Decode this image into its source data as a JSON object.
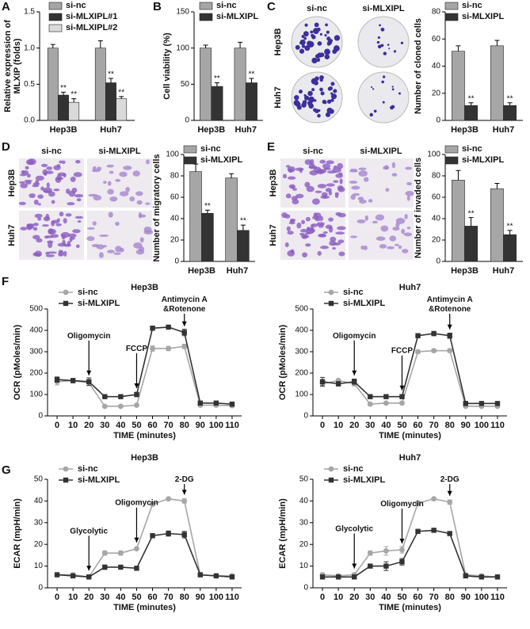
{
  "chart_data": [
    {
      "type": "bar",
      "panel": "A",
      "categories": [
        "Hep3B",
        "Huh7"
      ],
      "ylabel": [
        "Relative expression of",
        "MLXIP (folds)"
      ],
      "ylim": [
        0,
        1.5
      ],
      "yticks": [
        {
          "value": 0,
          "label": "0.0"
        },
        {
          "value": 0.5,
          "label": "0.5"
        },
        {
          "value": 1,
          "label": "1.0"
        },
        {
          "value": 1.5,
          "label": "1.5"
        }
      ],
      "series": [
        {
          "name": "si-nc",
          "color": "#a6a6a6",
          "values": [
            1.0,
            1.0
          ],
          "errors": [
            0.05,
            0.1
          ]
        },
        {
          "name": "si-MLXIPL#1",
          "color": "#333333",
          "values": [
            0.35,
            0.52
          ],
          "errors": [
            0.04,
            0.06
          ],
          "annotations": [
            "**",
            "**"
          ]
        },
        {
          "name": "si-MLXIPL#2",
          "color": "#dadada",
          "values": [
            0.25,
            0.3
          ],
          "errors": [
            0.05,
            0.03
          ],
          "annotations": [
            "**",
            "**"
          ]
        }
      ]
    },
    {
      "type": "bar",
      "panel": "B",
      "categories": [
        "Hep3B",
        "Huh7"
      ],
      "ylabel": "Cell viability (%)",
      "ylim": [
        0,
        150
      ],
      "yticks": [
        0,
        50,
        100,
        150
      ],
      "series": [
        {
          "name": "si-nc",
          "color": "#a6a6a6",
          "values": [
            100,
            100
          ],
          "errors": [
            4,
            8
          ]
        },
        {
          "name": "si-MLXIPL",
          "color": "#333333",
          "values": [
            47,
            52
          ],
          "errors": [
            5,
            6
          ],
          "annotations": [
            "**",
            "**"
          ]
        }
      ]
    },
    {
      "type": "bar",
      "panel": "C",
      "categories": [
        "Hep3B",
        "Huh7"
      ],
      "ylabel": "Number of cloned cells",
      "ylim": [
        0,
        80
      ],
      "yticks": [
        0,
        20,
        40,
        60,
        80
      ],
      "series": [
        {
          "name": "si-nc",
          "color": "#a6a6a6",
          "values": [
            51,
            55
          ],
          "errors": [
            4,
            4
          ]
        },
        {
          "name": "si-MLXIPL",
          "color": "#333333",
          "values": [
            11,
            11
          ],
          "errors": [
            2,
            2
          ],
          "annotations": [
            "**",
            "**"
          ]
        }
      ]
    },
    {
      "type": "bar",
      "panel": "D",
      "categories": [
        "Hep3B",
        "Huh7"
      ],
      "ylabel": "Number of migratory cells",
      "ylim": [
        0,
        100
      ],
      "yticks": [
        0,
        20,
        40,
        60,
        80,
        100
      ],
      "series": [
        {
          "name": "si-nc",
          "color": "#a6a6a6",
          "values": [
            84,
            78
          ],
          "errors": [
            7,
            4
          ]
        },
        {
          "name": "si-MLXIPL",
          "color": "#333333",
          "values": [
            45,
            29
          ],
          "errors": [
            3,
            5
          ],
          "annotations": [
            "**",
            "**"
          ]
        }
      ]
    },
    {
      "type": "bar",
      "panel": "E",
      "categories": [
        "Hep3B",
        "Huh7"
      ],
      "ylabel": "Number of invaded cells",
      "ylim": [
        0,
        100
      ],
      "yticks": [
        0,
        20,
        40,
        60,
        80,
        100
      ],
      "series": [
        {
          "name": "si-nc",
          "color": "#a6a6a6",
          "values": [
            76,
            68
          ],
          "errors": [
            9,
            5
          ]
        },
        {
          "name": "si-MLXIPL",
          "color": "#333333",
          "values": [
            33,
            25
          ],
          "errors": [
            8,
            4
          ],
          "annotations": [
            "**",
            "**"
          ]
        }
      ]
    },
    {
      "type": "line",
      "panel": "F",
      "title": "Hep3B",
      "ylabel": "OCR (pMoles/min)",
      "xlabel": "TIME (minutes)",
      "x": [
        0,
        10,
        20,
        30,
        40,
        50,
        60,
        70,
        80,
        90,
        100,
        110
      ],
      "xlim": [
        -6,
        116
      ],
      "xticks": [
        0,
        10,
        20,
        30,
        40,
        50,
        60,
        70,
        80,
        90,
        100,
        110
      ],
      "ylim": [
        0,
        500
      ],
      "yticks": [
        0,
        100,
        200,
        300,
        400,
        500
      ],
      "series": [
        {
          "name": "si-nc",
          "color": "#a6a6a6",
          "marker": "circle",
          "values": [
            160,
            165,
            155,
            45,
            45,
            50,
            315,
            315,
            325,
            50,
            50,
            48
          ],
          "errors": [
            15,
            10,
            12,
            5,
            5,
            6,
            12,
            10,
            10,
            5,
            5,
            5
          ]
        },
        {
          "name": "si-MLXIPL",
          "color": "#333333",
          "marker": "square",
          "values": [
            170,
            165,
            160,
            90,
            90,
            100,
            410,
            415,
            390,
            60,
            60,
            55
          ],
          "errors": [
            12,
            10,
            18,
            5,
            5,
            10,
            10,
            6,
            15,
            6,
            5,
            5
          ]
        }
      ],
      "annotations": [
        {
          "text": [
            "Oligomycin"
          ],
          "x": 20
        },
        {
          "text": [
            "FCCP"
          ],
          "x": 50
        },
        {
          "text": [
            "Antimycin A",
            "&Rotenone"
          ],
          "x": 80
        }
      ]
    },
    {
      "type": "line",
      "title": "Huh7",
      "ylabel": "OCR (pMoles/min)",
      "xlabel": "TIME (minutes)",
      "x": [
        0,
        10,
        20,
        30,
        40,
        50,
        60,
        70,
        80,
        90,
        100,
        110
      ],
      "xlim": [
        -6,
        116
      ],
      "xticks": [
        0,
        10,
        20,
        30,
        40,
        50,
        60,
        70,
        80,
        90,
        100,
        110
      ],
      "ylim": [
        0,
        500
      ],
      "yticks": [
        0,
        100,
        200,
        300,
        400,
        500
      ],
      "series": [
        {
          "name": "si-nc",
          "color": "#a6a6a6",
          "marker": "circle",
          "values": [
            150,
            165,
            150,
            55,
            60,
            60,
            300,
            305,
            305,
            45,
            45,
            45
          ],
          "errors": [
            12,
            8,
            10,
            5,
            5,
            5,
            8,
            8,
            8,
            5,
            5,
            5
          ]
        },
        {
          "name": "si-MLXIPL",
          "color": "#333333",
          "marker": "square",
          "values": [
            160,
            150,
            160,
            90,
            90,
            90,
            375,
            385,
            375,
            58,
            58,
            58
          ],
          "errors": [
            20,
            10,
            12,
            5,
            5,
            6,
            8,
            10,
            12,
            5,
            5,
            5
          ]
        }
      ],
      "annotations": [
        {
          "text": [
            "Oligomycin"
          ],
          "x": 20
        },
        {
          "text": [
            "FCCP"
          ],
          "x": 50
        },
        {
          "text": [
            "Antimycin A",
            "&Rotenone"
          ],
          "x": 80
        }
      ]
    },
    {
      "type": "line",
      "panel": "G",
      "title": "Hep3B",
      "ylabel": "ECAR (mpH/min)",
      "xlabel": "TIME (minutes)",
      "x": [
        0,
        10,
        20,
        30,
        40,
        50,
        60,
        70,
        80,
        90,
        100,
        110
      ],
      "xlim": [
        -6,
        116
      ],
      "xticks": [
        0,
        10,
        20,
        30,
        40,
        50,
        60,
        70,
        80,
        90,
        100,
        110
      ],
      "ylim": [
        0,
        50
      ],
      "yticks": [
        0,
        10,
        20,
        30,
        40,
        50
      ],
      "series": [
        {
          "name": "si-nc",
          "color": "#a6a6a6",
          "marker": "circle",
          "values": [
            6,
            6,
            5,
            16,
            16,
            18,
            38.5,
            41,
            40,
            6,
            5.5,
            5.5
          ],
          "errors": [
            0.5,
            0.5,
            0.5,
            1,
            1,
            0.5,
            0.8,
            0.5,
            1,
            0.5,
            0.5,
            0.5
          ]
        },
        {
          "name": "si-MLXIPL",
          "color": "#333333",
          "marker": "square",
          "values": [
            6,
            5.5,
            5,
            9.5,
            9.5,
            9,
            24,
            25,
            24.5,
            6,
            5.5,
            5
          ],
          "errors": [
            0.5,
            0.5,
            0.5,
            1,
            0.8,
            0.5,
            0.8,
            1.2,
            1.5,
            0.5,
            0.5,
            0.8
          ]
        }
      ],
      "annotations": [
        {
          "text": [
            "Glycolytic"
          ],
          "x": 20
        },
        {
          "text": [
            "Oligomycin"
          ],
          "x": 50
        },
        {
          "text": [
            "2-DG"
          ],
          "x": 80
        }
      ]
    },
    {
      "type": "line",
      "title": "Huh7",
      "ylabel": "ECAR (mpH/min)",
      "xlabel": "TIME (minutes)",
      "x": [
        0,
        10,
        20,
        30,
        40,
        50,
        60,
        70,
        80,
        90,
        100,
        110
      ],
      "xlim": [
        -6,
        116
      ],
      "xticks": [
        0,
        10,
        20,
        30,
        40,
        50,
        60,
        70,
        80,
        90,
        100,
        110
      ],
      "ylim": [
        0,
        50
      ],
      "yticks": [
        0,
        10,
        20,
        30,
        40,
        50
      ],
      "series": [
        {
          "name": "si-nc",
          "color": "#a6a6a6",
          "marker": "circle",
          "values": [
            6,
            5.5,
            6,
            16,
            17,
            17.5,
            39,
            41,
            39.5,
            6,
            5.5,
            5
          ],
          "errors": [
            0.8,
            0.5,
            0.8,
            1,
            2,
            1.5,
            1,
            0.5,
            1,
            0.5,
            0.5,
            0.5
          ]
        },
        {
          "name": "si-MLXIPL",
          "color": "#333333",
          "marker": "square",
          "values": [
            5,
            5,
            5,
            10,
            10,
            12,
            26,
            26.5,
            25,
            5.5,
            5,
            5
          ],
          "errors": [
            0.5,
            0.5,
            0.5,
            0.8,
            2,
            1.5,
            0.8,
            0.8,
            0.8,
            0.5,
            0.5,
            0.5
          ]
        }
      ],
      "annotations": [
        {
          "text": [
            "Glycolytic"
          ],
          "x": 20
        },
        {
          "text": [
            "Oligomycin"
          ],
          "x": 50
        },
        {
          "text": [
            "2-DG"
          ],
          "x": 80
        }
      ]
    }
  ],
  "image_panels": [
    {
      "columns": [
        "si-nc",
        "si-MLXIPL"
      ],
      "rows": [
        "Hep3B",
        "Huh7"
      ]
    },
    {
      "columns": [
        "si-nc",
        "si-MLXIPL"
      ],
      "rows": [
        "Hep3B",
        "Huh7"
      ]
    },
    {
      "columns": [
        "si-nc",
        "si-MLXIPL"
      ],
      "rows": [
        "Hep3B",
        "Huh7"
      ]
    }
  ]
}
